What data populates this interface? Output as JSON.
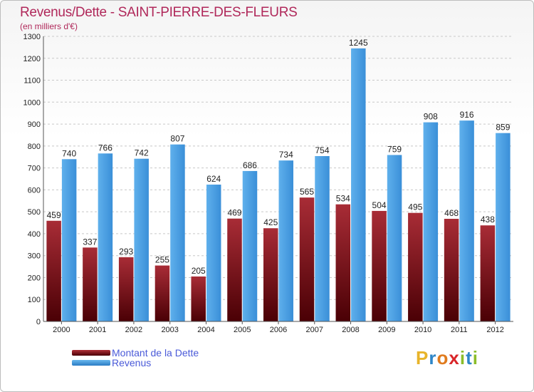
{
  "title": "Revenus/Dette - SAINT-PIERRE-DES-FLEURS",
  "subtitle": "(en milliers d'€)",
  "chart_data": {
    "type": "bar",
    "categories": [
      "2000",
      "2001",
      "2002",
      "2003",
      "2004",
      "2005",
      "2006",
      "2007",
      "2008",
      "2009",
      "2010",
      "2011",
      "2012"
    ],
    "series": [
      {
        "name": "Montant de la Dette",
        "color": "#7a1418",
        "values": [
          459,
          337,
          293,
          255,
          205,
          469,
          425,
          565,
          534,
          504,
          495,
          468,
          438
        ]
      },
      {
        "name": "Revenus",
        "color": "#3a8fd8",
        "values": [
          740,
          766,
          742,
          807,
          624,
          686,
          734,
          754,
          1245,
          759,
          908,
          916,
          859
        ]
      }
    ],
    "ylim": [
      0,
      1300
    ],
    "yticks": [
      0,
      100,
      200,
      300,
      400,
      500,
      600,
      700,
      800,
      900,
      1000,
      1100,
      1200,
      1300
    ],
    "grid": true,
    "legend": "bottom-left"
  },
  "legend": {
    "dette_label": "Montant de la Dette",
    "revenus_label": "Revenus"
  },
  "logo": {
    "letters": [
      "P",
      "r",
      "o",
      "x",
      "i",
      "t",
      "i"
    ],
    "colors": [
      "#e8b42a",
      "#2e86c8",
      "#e07b1e",
      "#d9262a",
      "#8bbd2a",
      "#2e86c8",
      "#8bbd2a"
    ]
  }
}
